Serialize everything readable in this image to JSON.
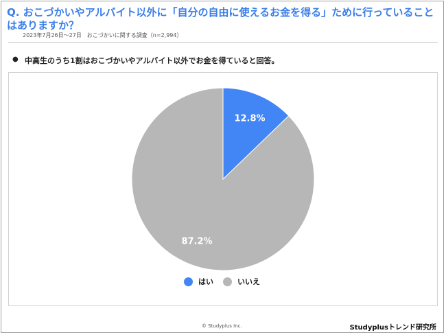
{
  "header": {
    "question": "Q. おこづかいやアルバイト以外に「自分の自由に使えるお金を得る」ために行っていることはありますか？",
    "survey_note": "2023年7月26日〜27日　おこづかいに関する調査（n=2,994）"
  },
  "finding": {
    "bullet": "●",
    "text": "中高生のうち1割はおこづかいやアルバイト以外でお金を得ていると回答。"
  },
  "chart_data": {
    "type": "pie",
    "categories": [
      "はい",
      "いいえ"
    ],
    "values": [
      12.8,
      87.2
    ],
    "data_labels": [
      "12.8%",
      "87.2%"
    ],
    "colors": [
      "#4285f4",
      "#b7b7b7"
    ],
    "legend": "bottom"
  },
  "footer": {
    "copyright": "© Studyplus Inc.",
    "brand": "Studyplusトレンド研究所"
  }
}
